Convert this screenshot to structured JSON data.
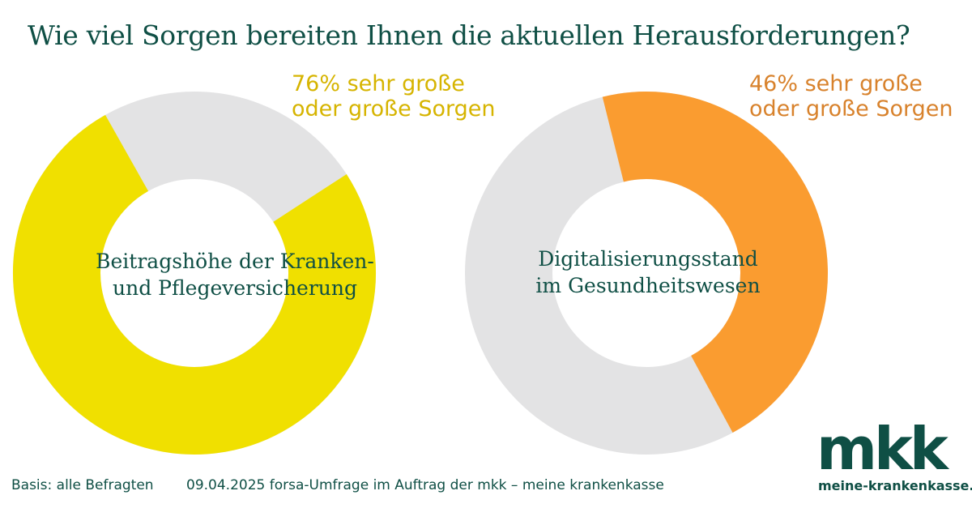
{
  "title": "Wie viel Sorgen bereiten Ihnen die aktuellen Herausforderungen?",
  "colors": {
    "text": "#0f4f45",
    "remainder": "#e3e3e4",
    "series1": "#f0e000",
    "series1_label": "#d6b400",
    "series2": "#fa9c30",
    "series2_label": "#d8822c"
  },
  "chart_data": [
    {
      "type": "pie",
      "style": "donut",
      "label_lines": [
        "Beitragshöhe der Kranken-",
        "und Pflegeversicherung"
      ],
      "value": 76,
      "unit": "%",
      "callout_lines": [
        "76% sehr große",
        "oder große Sorgen"
      ]
    },
    {
      "type": "pie",
      "style": "donut",
      "label_lines": [
        "Digitalisierungsstand",
        "im Gesundheitswesen"
      ],
      "value": 46,
      "unit": "%",
      "callout_lines": [
        "46% sehr große",
        "oder große Sorgen"
      ]
    }
  ],
  "footer": {
    "basis": "Basis: alle Befragten",
    "source": "09.04.2025 forsa-Umfrage im Auftrag der mkk – meine krankenkasse"
  },
  "logo": {
    "mark": "mkk",
    "url": "meine-krankenkasse.de"
  }
}
